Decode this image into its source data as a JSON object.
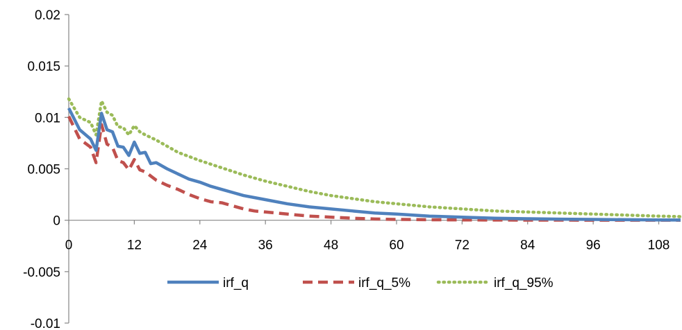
{
  "chart_data": {
    "type": "line",
    "title": "",
    "xlabel": "",
    "ylabel": "",
    "xlim": [
      0,
      112
    ],
    "ylim": [
      -0.01,
      0.02
    ],
    "x_ticks": [
      0,
      12,
      24,
      36,
      48,
      60,
      72,
      84,
      96,
      108
    ],
    "x_tick_labels": [
      "0",
      "12",
      "24",
      "36",
      "48",
      "60",
      "72",
      "84",
      "96",
      "108"
    ],
    "y_ticks": [
      -0.01,
      -0.005,
      0,
      0.005,
      0.01,
      0.015,
      0.02
    ],
    "y_tick_labels": [
      "-0.01",
      "-0.005",
      "0",
      "0.005",
      "0.01",
      "0.015",
      "0.02"
    ],
    "grid": false,
    "legend_position": "inside-bottom",
    "series": [
      {
        "name": "irf_q",
        "color": "#4F81BD",
        "style": "solid",
        "x": [
          0,
          2,
          4,
          5,
          6,
          7,
          8,
          9,
          10,
          11,
          12,
          13,
          14,
          15,
          16,
          18,
          20,
          22,
          24,
          26,
          28,
          30,
          32,
          36,
          40,
          44,
          48,
          52,
          56,
          60,
          66,
          72,
          78,
          84,
          90,
          96,
          102,
          108,
          112
        ],
        "y": [
          0.0109,
          0.0088,
          0.0079,
          0.0068,
          0.0104,
          0.0088,
          0.0086,
          0.0072,
          0.0071,
          0.0063,
          0.0076,
          0.0065,
          0.0066,
          0.0055,
          0.0056,
          0.005,
          0.0045,
          0.004,
          0.0037,
          0.0033,
          0.003,
          0.0027,
          0.0024,
          0.002,
          0.0016,
          0.0013,
          0.0011,
          0.0009,
          0.0007,
          0.0006,
          0.0004,
          0.0003,
          0.0002,
          0.00015,
          0.0001,
          8e-05,
          5e-05,
          3e-05,
          2e-05
        ]
      },
      {
        "name": "irf_q_5%",
        "color": "#C0504D",
        "style": "dashed",
        "x": [
          0,
          2,
          4,
          5,
          6,
          7,
          8,
          9,
          10,
          11,
          12,
          13,
          14,
          16,
          18,
          20,
          22,
          24,
          26,
          28,
          30,
          32,
          34,
          36,
          40,
          44,
          48,
          52,
          56,
          60,
          66,
          72,
          78,
          84,
          90,
          96,
          102,
          108,
          112
        ],
        "y": [
          0.0101,
          0.0079,
          0.0071,
          0.0056,
          0.0093,
          0.0074,
          0.0071,
          0.0058,
          0.0056,
          0.0049,
          0.0059,
          0.0049,
          0.0047,
          0.0039,
          0.0034,
          0.003,
          0.0025,
          0.0021,
          0.0018,
          0.0017,
          0.0014,
          0.0011,
          0.0009,
          0.0008,
          0.0006,
          0.0004,
          0.0003,
          0.0002,
          0.00012,
          8e-05,
          5e-05,
          3e-05,
          2e-05,
          1e-05,
          1e-05,
          0.0,
          0.0,
          0.0,
          0.0
        ]
      },
      {
        "name": "irf_q_95%",
        "color": "#9BBB59",
        "style": "dotted",
        "x": [
          0,
          2,
          4,
          5,
          6,
          7,
          8,
          9,
          10,
          11,
          12,
          13,
          14,
          16,
          18,
          20,
          24,
          28,
          32,
          36,
          40,
          44,
          48,
          52,
          56,
          60,
          66,
          72,
          78,
          84,
          90,
          96,
          102,
          108,
          112
        ],
        "y": [
          0.0118,
          0.01,
          0.0095,
          0.0083,
          0.0116,
          0.0105,
          0.0102,
          0.0091,
          0.009,
          0.0083,
          0.0092,
          0.0086,
          0.0083,
          0.0078,
          0.0072,
          0.0066,
          0.0058,
          0.0051,
          0.0044,
          0.0038,
          0.0033,
          0.0028,
          0.0024,
          0.0021,
          0.0018,
          0.0016,
          0.0013,
          0.0011,
          0.0009,
          0.0008,
          0.0007,
          0.0006,
          0.0005,
          0.0004,
          0.00035
        ]
      }
    ]
  }
}
